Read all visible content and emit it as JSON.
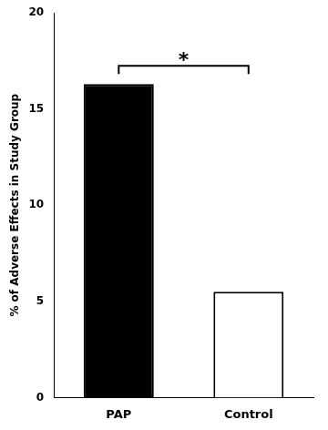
{
  "chart_data": {
    "type": "bar",
    "categories": [
      "PAP",
      "Control"
    ],
    "values": [
      16.3,
      5.5
    ],
    "colors": [
      "#000000",
      "#ffffff"
    ],
    "ylabel": "% of Adverse Effects in Study Group",
    "ylim": [
      0,
      20
    ],
    "yticks": [
      0,
      5,
      10,
      15,
      20
    ],
    "grid": false,
    "annotation": "*"
  }
}
